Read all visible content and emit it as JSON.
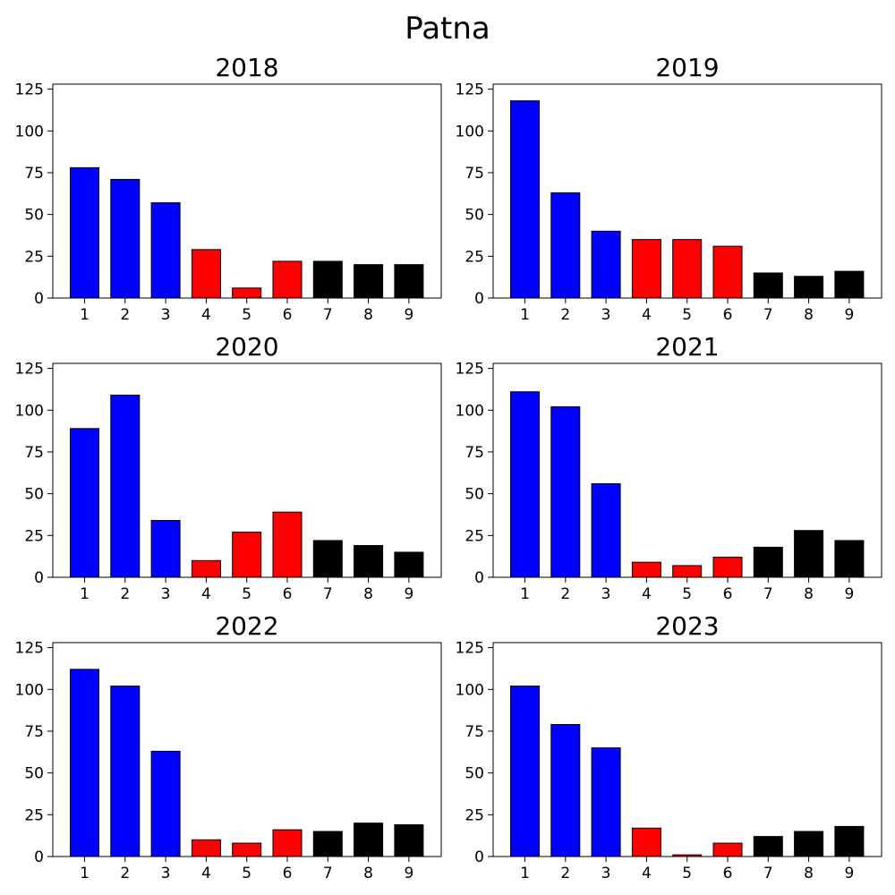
{
  "title": "Patna",
  "chart_data": [
    {
      "type": "bar",
      "title": "2018",
      "categories": [
        "1",
        "2",
        "3",
        "4",
        "5",
        "6",
        "7",
        "8",
        "9"
      ],
      "values": [
        78,
        71,
        57,
        29,
        6,
        22,
        22,
        20,
        20
      ],
      "colors": [
        "#0000ff",
        "#0000ff",
        "#0000ff",
        "#ff0000",
        "#ff0000",
        "#ff0000",
        "#000000",
        "#000000",
        "#000000"
      ],
      "ylim": [
        0,
        128
      ],
      "yticks": [
        0,
        25,
        50,
        75,
        100,
        125
      ],
      "grid": false
    },
    {
      "type": "bar",
      "title": "2019",
      "categories": [
        "1",
        "2",
        "3",
        "4",
        "5",
        "6",
        "7",
        "8",
        "9"
      ],
      "values": [
        118,
        63,
        40,
        35,
        35,
        31,
        15,
        13,
        16
      ],
      "colors": [
        "#0000ff",
        "#0000ff",
        "#0000ff",
        "#ff0000",
        "#ff0000",
        "#ff0000",
        "#000000",
        "#000000",
        "#000000"
      ],
      "ylim": [
        0,
        128
      ],
      "yticks": [
        0,
        25,
        50,
        75,
        100,
        125
      ],
      "grid": false
    },
    {
      "type": "bar",
      "title": "2020",
      "categories": [
        "1",
        "2",
        "3",
        "4",
        "5",
        "6",
        "7",
        "8",
        "9"
      ],
      "values": [
        89,
        109,
        34,
        10,
        27,
        39,
        22,
        19,
        15
      ],
      "colors": [
        "#0000ff",
        "#0000ff",
        "#0000ff",
        "#ff0000",
        "#ff0000",
        "#ff0000",
        "#000000",
        "#000000",
        "#000000"
      ],
      "ylim": [
        0,
        128
      ],
      "yticks": [
        0,
        25,
        50,
        75,
        100,
        125
      ],
      "grid": false
    },
    {
      "type": "bar",
      "title": "2021",
      "categories": [
        "1",
        "2",
        "3",
        "4",
        "5",
        "6",
        "7",
        "8",
        "9"
      ],
      "values": [
        111,
        102,
        56,
        9,
        7,
        12,
        18,
        28,
        22
      ],
      "colors": [
        "#0000ff",
        "#0000ff",
        "#0000ff",
        "#ff0000",
        "#ff0000",
        "#ff0000",
        "#000000",
        "#000000",
        "#000000"
      ],
      "ylim": [
        0,
        128
      ],
      "yticks": [
        0,
        25,
        50,
        75,
        100,
        125
      ],
      "grid": false
    },
    {
      "type": "bar",
      "title": "2022",
      "categories": [
        "1",
        "2",
        "3",
        "4",
        "5",
        "6",
        "7",
        "8",
        "9"
      ],
      "values": [
        112,
        102,
        63,
        10,
        8,
        16,
        15,
        20,
        19
      ],
      "colors": [
        "#0000ff",
        "#0000ff",
        "#0000ff",
        "#ff0000",
        "#ff0000",
        "#ff0000",
        "#000000",
        "#000000",
        "#000000"
      ],
      "ylim": [
        0,
        128
      ],
      "yticks": [
        0,
        25,
        50,
        75,
        100,
        125
      ],
      "grid": false
    },
    {
      "type": "bar",
      "title": "2023",
      "categories": [
        "1",
        "2",
        "3",
        "4",
        "5",
        "6",
        "7",
        "8",
        "9"
      ],
      "values": [
        102,
        79,
        65,
        17,
        1,
        8,
        12,
        15,
        18
      ],
      "colors": [
        "#0000ff",
        "#0000ff",
        "#0000ff",
        "#ff0000",
        "#ff0000",
        "#ff0000",
        "#000000",
        "#000000",
        "#000000"
      ],
      "ylim": [
        0,
        128
      ],
      "yticks": [
        0,
        25,
        50,
        75,
        100,
        125
      ],
      "grid": false
    }
  ]
}
